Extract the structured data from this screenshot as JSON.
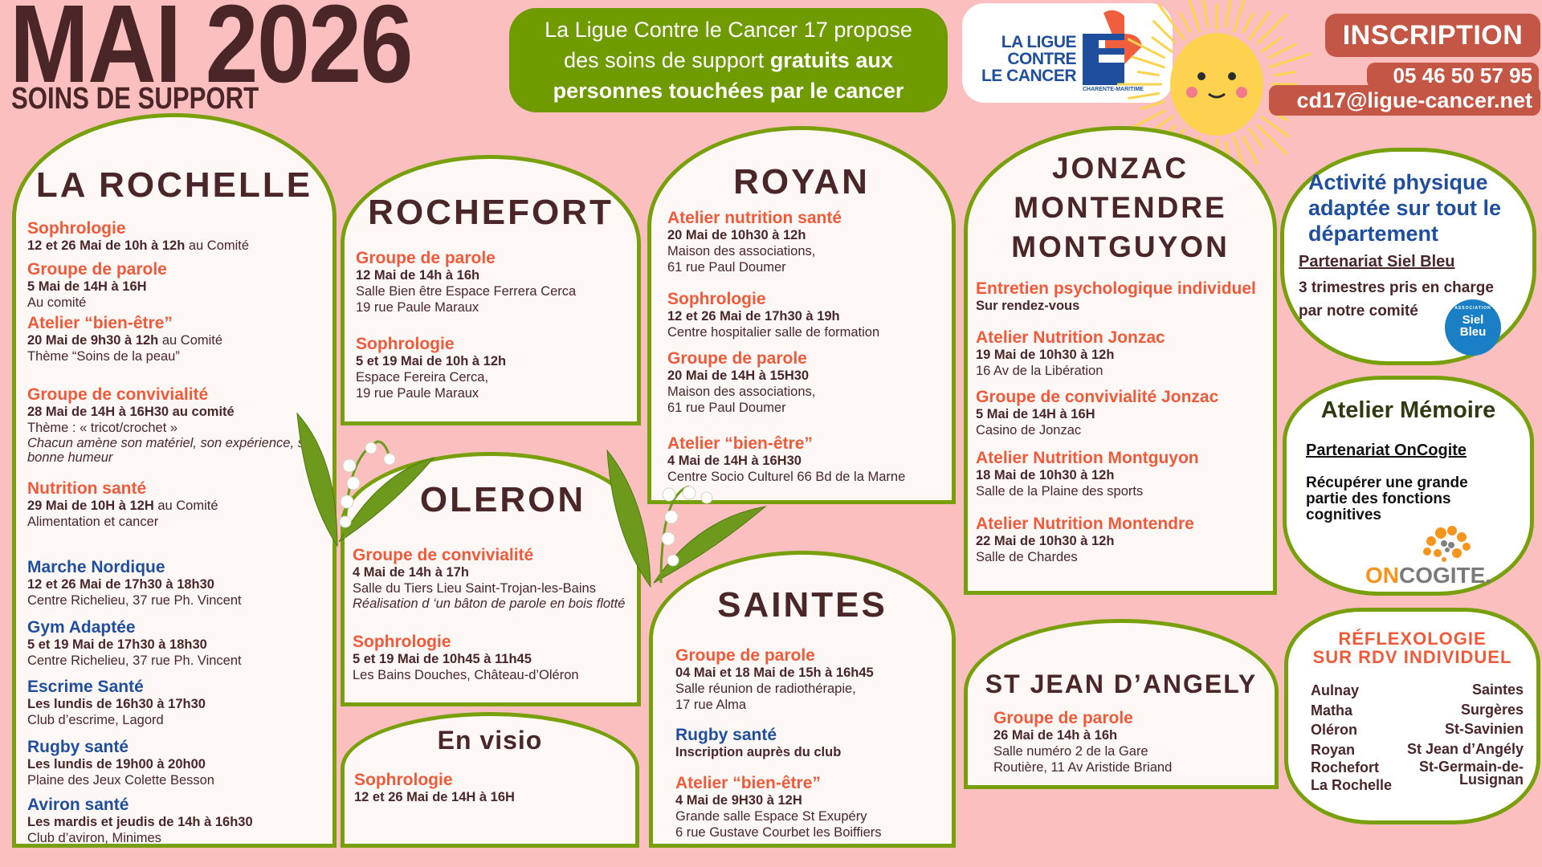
{
  "header": {
    "title": "MAI 2026",
    "subtitle": "SOINS DE SUPPORT",
    "intro_line1": "La Ligue Contre le Cancer  17 propose",
    "intro_line2_regular": "des soins de support ",
    "intro_line2_bold": "gratuits aux",
    "intro_line3": "personnes touchées par le cancer"
  },
  "logo": {
    "line1": "LA LIGUE",
    "line2": "CONTRE",
    "line3": "LE CANCER",
    "region": "CHARENTE-MARITIME"
  },
  "contact": {
    "inscription": "INSCRIPTION",
    "phone": "05  46 50 57 95",
    "email": "cd17@ligue-cancer.net"
  },
  "colors": {
    "background": "#fcbfbf",
    "border": "#78a00c",
    "orange": "#ef5b3a",
    "blue": "#1f4f9c",
    "dark": "#4a2628",
    "green_box": "#6f9a00",
    "contact_box": "#c35645"
  },
  "panels": {
    "la_rochelle": {
      "title": "LA ROCHELLE",
      "entries": [
        {
          "title": "Sophrologie",
          "color": "orange",
          "date": "12 et 26 Mai de 10h à 12h",
          "date_suffix": " au Comité",
          "lines": [],
          "italic": []
        },
        {
          "title": "Groupe de parole",
          "color": "orange",
          "date": "5 Mai de 14H à 16H",
          "date_suffix": "",
          "lines": [
            "Au comité"
          ],
          "italic": []
        },
        {
          "title": "Atelier “bien-être”",
          "color": "orange",
          "date": "20 Mai de 9h30 à 12h",
          "date_suffix": " au Comité",
          "lines": [
            "Thème “Soins de la peau”"
          ],
          "italic": []
        },
        {
          "title": "Groupe de convivialité",
          "color": "orange",
          "date": "28 Mai de 14H à 16H30 au comité",
          "date_suffix": "",
          "lines": [
            "Thème : « tricot/crochet »"
          ],
          "italic": [
            "Chacun amène son matériel, son expérience, sa bonne humeur"
          ]
        },
        {
          "title": "Nutrition santé",
          "color": "orange",
          "date": "29 Mai de 10H à 12H",
          "date_suffix": " au Comité",
          "lines": [
            "Alimentation et cancer"
          ],
          "italic": []
        },
        {
          "title": "Marche Nordique",
          "color": "blue",
          "date": "12 et 26 Mai de 17h30 à 18h30",
          "date_suffix": "",
          "lines": [
            "Centre Richelieu, 37 rue Ph. Vincent"
          ],
          "italic": []
        },
        {
          "title": "Gym  Adaptée",
          "color": "blue",
          "date": "5 et 19 Mai de 17h30 à 18h30",
          "date_suffix": "",
          "lines": [
            "Centre Richelieu, 37 rue Ph. Vincent"
          ],
          "italic": []
        },
        {
          "title": "Escrime Santé",
          "color": "blue",
          "date": "Les lundis de 16h30 à 17h30",
          "date_suffix": "",
          "lines": [
            "Club d’escrime, Lagord"
          ],
          "italic": []
        },
        {
          "title": "Rugby santé",
          "color": "blue",
          "date": "Les lundis de 19h00 à 20h00",
          "date_suffix": "",
          "lines": [
            "Plaine des Jeux Colette Besson"
          ],
          "italic": []
        },
        {
          "title": "Aviron santé",
          "color": "blue",
          "date": "Les mardis et jeudis de 14h à 16h30",
          "date_suffix": "",
          "lines": [
            "Club d’aviron, Minimes"
          ],
          "italic": []
        }
      ]
    },
    "rochefort": {
      "title": "ROCHEFORT",
      "entries": [
        {
          "title": "Groupe de parole",
          "color": "orange",
          "date": "12 Mai de 14h à 16h",
          "date_suffix": "",
          "lines": [
            " Salle Bien être Espace Ferrera Cerca",
            " 19 rue Paule Maraux"
          ],
          "italic": []
        },
        {
          "title": "Sophrologie",
          "color": "orange",
          "date": "5 et 19 Mai de 10h à 12h",
          "date_suffix": "",
          "lines": [
            "Espace Fereira Cerca,",
            "19 rue Paule Maraux"
          ],
          "italic": []
        }
      ]
    },
    "oleron": {
      "title": "OLERON",
      "entries": [
        {
          "title": "Groupe de convivialité",
          "color": "orange",
          "date": "4 Mai de 14h à 17h",
          "date_suffix": "",
          "lines": [
            "Salle du Tiers Lieu Saint-Trojan-les-Bains"
          ],
          "italic": [
            "Réalisation d ‘un bâton de parole en bois flotté"
          ]
        },
        {
          "title": "Sophrologie",
          "color": "orange",
          "date": "5 et 19 Mai de 10h45 à 11h45",
          "date_suffix": "",
          "lines": [
            "Les Bains Douches, Château-d’Oléron"
          ],
          "italic": []
        }
      ]
    },
    "en_visio": {
      "title": "En visio",
      "entries": [
        {
          "title": "Sophrologie",
          "color": "orange",
          "date": "12 et 26 Mai de 14H à 16H",
          "date_suffix": "",
          "lines": [],
          "italic": []
        }
      ]
    },
    "royan": {
      "title": "ROYAN",
      "entries": [
        {
          "title": "Atelier nutrition santé",
          "color": "orange",
          "date": "20 Mai de 10h30 à 12h",
          "date_suffix": "",
          "lines": [
            "Maison des associations,",
            "61 rue Paul Doumer"
          ],
          "italic": []
        },
        {
          "title": "Sophrologie",
          "color": "orange",
          "date": "12 et 26 Mai de 17h30 à 19h",
          "date_suffix": "",
          "lines": [
            "Centre hospitalier salle de formation"
          ],
          "italic": []
        },
        {
          "title": "Groupe de parole",
          "color": "orange",
          "date": "20 Mai de 14H à 15H30",
          "date_suffix": "",
          "lines": [
            "Maison des associations,",
            "61 rue Paul Doumer"
          ],
          "italic": []
        },
        {
          "title": "Atelier “bien-être”",
          "color": "orange",
          "date": "4 Mai de 14H à 16H30",
          "date_suffix": "",
          "lines": [
            "Centre Socio Culturel 66 Bd de la Marne"
          ],
          "italic": []
        }
      ]
    },
    "saintes": {
      "title": "SAINTES",
      "entries": [
        {
          "title": "Groupe de parole",
          "color": "orange",
          "date": "04 Mai et 18 Mai de 15h à 16h45",
          "date_suffix": "",
          "lines": [
            "Salle réunion de radiothérapie,",
            "17 rue Alma"
          ],
          "italic": []
        },
        {
          "title": "Rugby santé",
          "color": "blue",
          "date": "Inscription auprès du club",
          "date_suffix": "",
          "lines": [],
          "italic": []
        },
        {
          "title": "Atelier “bien-être”",
          "color": "orange",
          "date": "4 Mai de 9H30 à 12H",
          "date_suffix": "",
          "lines": [
            "Grande salle Espace St Exupéry",
            "6 rue Gustave Courbet les Boiffiers"
          ],
          "italic": []
        }
      ]
    },
    "jonzac": {
      "title_lines": [
        "JONZAC",
        "MONTENDRE",
        "MONTGUYON"
      ],
      "entries": [
        {
          "title": "Entretien psychologique individuel",
          "color": "orange",
          "date": "Sur rendez-vous",
          "date_suffix": "",
          "lines": [],
          "italic": []
        },
        {
          "title": "Atelier Nutrition Jonzac",
          "color": "orange",
          "date": "19 Mai  de 10h30 à 12h",
          "date_suffix": "",
          "lines": [
            "16 Av de la Libération"
          ],
          "italic": []
        },
        {
          "title": "Groupe de convivialité Jonzac",
          "color": "orange",
          "date": "5 Mai de 14H à 16H",
          "date_suffix": "",
          "lines": [
            "Casino de Jonzac"
          ],
          "italic": []
        },
        {
          "title": "Atelier Nutrition  Montguyon",
          "color": "orange",
          "date": "18 Mai de 10h30 à 12h",
          "date_suffix": "",
          "lines": [
            "Salle de la Plaine des sports"
          ],
          "italic": []
        },
        {
          "title": "Atelier Nutrition Montendre",
          "color": "orange",
          "date": "22 Mai de 10h30 à 12h",
          "date_suffix": "",
          "lines": [
            "Salle de Chardes"
          ],
          "italic": []
        }
      ]
    },
    "st_jean": {
      "title": "ST JEAN D’ANGELY",
      "entries": [
        {
          "title": "Groupe de parole",
          "color": "orange",
          "date": "26 Mai  de 14h à 16h",
          "date_suffix": "",
          "lines": [
            "Salle numéro 2 de la Gare",
            "Routière, 11 Av Aristide Briand"
          ],
          "italic": []
        }
      ]
    }
  },
  "activite": {
    "title_lines": [
      "Activité physique",
      "adaptée sur tout le",
      "département"
    ],
    "partner": "Partenariat Siel Bleu",
    "text_lines": [
      "3 trimestres pris en charge",
      "par notre comité"
    ],
    "logo_small": "ASSOCIATION",
    "logo_line1": "Siel",
    "logo_line2": "Bleu"
  },
  "memoire": {
    "title": "Atelier Mémoire",
    "partner": "Partenariat  OnCogite",
    "text_lines": [
      "Récupérer une grande",
      "partie des fonctions",
      "cognitives"
    ],
    "logo_on": "ON",
    "logo_cogite": "COGITE."
  },
  "reflexologie": {
    "title_lines": [
      "RÉFLEXOLOGIE",
      "SUR RDV INDIVIDUEL"
    ],
    "left": [
      "Aulnay",
      "Matha",
      "Oléron",
      "Royan",
      "Rochefort",
      "La Rochelle"
    ],
    "right": [
      "Saintes",
      "Surgères",
      "St-Savinien",
      "St Jean d’Angély",
      "St-Germain-de-",
      "Lusignan"
    ]
  }
}
